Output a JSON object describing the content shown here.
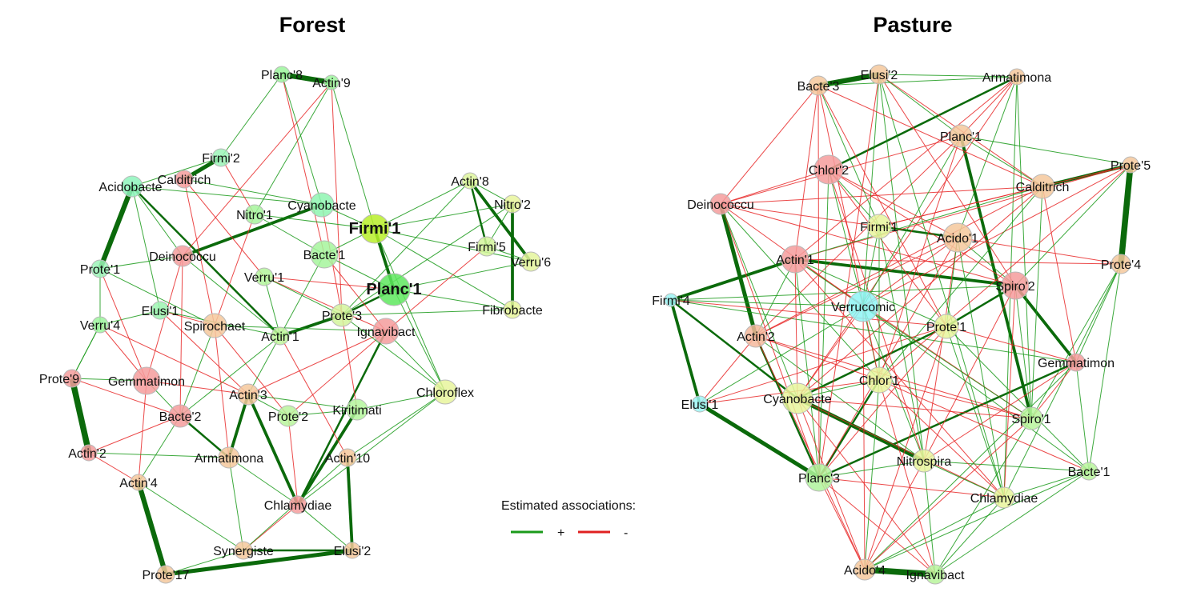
{
  "legend": {
    "title": "Estimated associations:",
    "positive_label": "+",
    "negative_label": "-",
    "positive_color": "#1a9a1a",
    "negative_color": "#e02020"
  },
  "colors": {
    "positive_edge": "#1a9a1a",
    "positive_strong_edge": "#0b6a0b",
    "negative_edge": "#e82828",
    "node_stroke": "#b8b8b8"
  },
  "networks": [
    {
      "id": "forest",
      "title": "Forest",
      "nodes": [
        {
          "id": "Planc'8",
          "label": "Planc'8",
          "color": "#9cf59c"
        },
        {
          "id": "Actin'9",
          "label": "Actin'9",
          "color": "#9cf59c"
        },
        {
          "id": "Firmi'2",
          "label": "Firmi'2",
          "color": "#9cf5b8"
        },
        {
          "id": "Calditrich",
          "label": "Calditrich",
          "color": "#f59c9c"
        },
        {
          "id": "Acidobacte",
          "label": "Acidobacte",
          "color": "#8ef5bc"
        },
        {
          "id": "Cyanobacte",
          "label": "Cyanobacte",
          "color": "#8ef5b0"
        },
        {
          "id": "Nitro'1",
          "label": "Nitro'1",
          "color": "#a6f59c"
        },
        {
          "id": "Firmi'1",
          "label": "Firmi'1",
          "color": "#b8ee2a",
          "hub": true
        },
        {
          "id": "Actin'8",
          "label": "Actin'8",
          "color": "#ddf59c"
        },
        {
          "id": "Nitro'2",
          "label": "Nitro'2",
          "color": "#e8f59c"
        },
        {
          "id": "Firmi'5",
          "label": "Firmi'5",
          "color": "#d4f59c"
        },
        {
          "id": "Verru'6",
          "label": "Verru'6",
          "color": "#e4f59c"
        },
        {
          "id": "Deinococcu",
          "label": "Deinococcu",
          "color": "#f59c9c"
        },
        {
          "id": "Bacte'1",
          "label": "Bacte'1",
          "color": "#a6f59c"
        },
        {
          "id": "Prote'1",
          "label": "Prote'1",
          "color": "#9cf5b8"
        },
        {
          "id": "Verru'1",
          "label": "Verru'1",
          "color": "#b4f59c"
        },
        {
          "id": "Planc'1",
          "label": "Planc'1",
          "color": "#5ee85e",
          "hub": true
        },
        {
          "id": "Elusi'1",
          "label": "Elusi'1",
          "color": "#9cf5b0"
        },
        {
          "id": "Verru'4",
          "label": "Verru'4",
          "color": "#9cf59c"
        },
        {
          "id": "Spirochaet",
          "label": "Spirochaet",
          "color": "#f5c89c"
        },
        {
          "id": "Prote'3",
          "label": "Prote'3",
          "color": "#d4f59c"
        },
        {
          "id": "Fibrobacte",
          "label": "Fibrobacte",
          "color": "#e8f59c"
        },
        {
          "id": "Actin'1",
          "label": "Actin'1",
          "color": "#c0f59c"
        },
        {
          "id": "Ignavibact",
          "label": "Ignavibact",
          "color": "#f59c9c"
        },
        {
          "id": "Prote'9",
          "label": "Prote'9",
          "color": "#f59c9c"
        },
        {
          "id": "Gemmatimon",
          "label": "Gemmatimon",
          "color": "#f59c9c"
        },
        {
          "id": "Chloroflex",
          "label": "Chloroflex",
          "color": "#e8f59c"
        },
        {
          "id": "Actin'3",
          "label": "Actin'3",
          "color": "#f5c89c"
        },
        {
          "id": "Bacte'2",
          "label": "Bacte'2",
          "color": "#f59c9c"
        },
        {
          "id": "Prote'2",
          "label": "Prote'2",
          "color": "#b8f59c"
        },
        {
          "id": "Kiritimati",
          "label": "Kiritimati",
          "color": "#b4f59c"
        },
        {
          "id": "Actin'2",
          "label": "Actin'2",
          "color": "#f59c9c"
        },
        {
          "id": "Armatimona",
          "label": "Armatimona",
          "color": "#f5c89c"
        },
        {
          "id": "Actin'10",
          "label": "Actin'10",
          "color": "#f5c89c"
        },
        {
          "id": "Actin'4",
          "label": "Actin'4",
          "color": "#f5c89c"
        },
        {
          "id": "Chlamydiae",
          "label": "Chlamydiae",
          "color": "#f59c9c"
        },
        {
          "id": "Synergiste",
          "label": "Synergiste",
          "color": "#f5c89c"
        },
        {
          "id": "Elusi'2",
          "label": "Elusi'2",
          "color": "#f5c89c"
        },
        {
          "id": "Prote'17",
          "label": "Prote'17",
          "color": "#f5c89c"
        }
      ]
    },
    {
      "id": "pasture",
      "title": "Pasture",
      "nodes": [
        {
          "id": "Bacte'3",
          "label": "Bacte'3",
          "color": "#f5c89c"
        },
        {
          "id": "Elusi'2",
          "label": "Elusi'2",
          "color": "#f5c89c"
        },
        {
          "id": "Armatimona",
          "label": "Armatimona",
          "color": "#f5c89c"
        },
        {
          "id": "Planc'1",
          "label": "Planc'1",
          "color": "#f5c89c"
        },
        {
          "id": "Prote'5",
          "label": "Prote'5",
          "color": "#f5c89c"
        },
        {
          "id": "Chlor'2",
          "label": "Chlor'2",
          "color": "#f59c9c"
        },
        {
          "id": "Calditrich",
          "label": "Calditrich",
          "color": "#f5c89c"
        },
        {
          "id": "Deinococcu",
          "label": "Deinococcu",
          "color": "#f59c9c"
        },
        {
          "id": "Firmi'1",
          "label": "Firmi'1",
          "color": "#e8f59c"
        },
        {
          "id": "Acido'1",
          "label": "Acido'1",
          "color": "#f5c89c"
        },
        {
          "id": "Actin'1",
          "label": "Actin'1",
          "color": "#f59c9c"
        },
        {
          "id": "Prote'4",
          "label": "Prote'4",
          "color": "#f5c89c"
        },
        {
          "id": "Spiro'2",
          "label": "Spiro'2",
          "color": "#f59c9c"
        },
        {
          "id": "Firmi'4",
          "label": "Firmi'4",
          "color": "#9cf5f5"
        },
        {
          "id": "Verrucomic",
          "label": "Verrucomic",
          "color": "#8ef5f5"
        },
        {
          "id": "Prote'1",
          "label": "Prote'1",
          "color": "#e8f59c"
        },
        {
          "id": "Actin'2",
          "label": "Actin'2",
          "color": "#f5b89c"
        },
        {
          "id": "Gemmatimon",
          "label": "Gemmatimon",
          "color": "#f59c9c"
        },
        {
          "id": "Chlor'1",
          "label": "Chlor'1",
          "color": "#e8f59c"
        },
        {
          "id": "Elusi'1",
          "label": "Elusi'1",
          "color": "#9cf5f5"
        },
        {
          "id": "Cyanobacte",
          "label": "Cyanobacte",
          "color": "#e8f59c"
        },
        {
          "id": "Spiro'1",
          "label": "Spiro'1",
          "color": "#b8f59c"
        },
        {
          "id": "Nitrospira",
          "label": "Nitrospira",
          "color": "#e8f59c"
        },
        {
          "id": "Bacte'1",
          "label": "Bacte'1",
          "color": "#b8f59c"
        },
        {
          "id": "Planc'3",
          "label": "Planc'3",
          "color": "#b0f59c"
        },
        {
          "id": "Chlamydiae",
          "label": "Chlamydiae",
          "color": "#e8f59c"
        },
        {
          "id": "Acido'4",
          "label": "Acido'4",
          "color": "#f5c89c"
        },
        {
          "id": "Ignavibact",
          "label": "Ignavibact",
          "color": "#b8f59c"
        }
      ]
    }
  ]
}
